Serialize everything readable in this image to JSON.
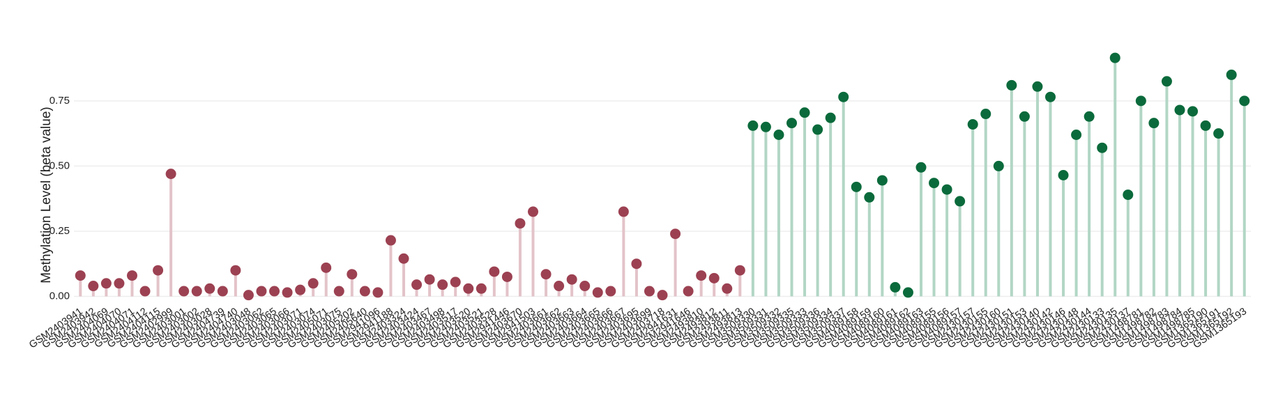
{
  "chart_data": {
    "type": "lollipop",
    "y_label": "Methylation Level (beta value)",
    "categories": [
      "GSM2403941",
      "GSM2403942",
      "GSM2404069",
      "GSM2404070",
      "GSM2404071",
      "GSM2404112",
      "GSM2404115",
      "GSM2402999",
      "GSM2403001",
      "GSM2403002",
      "GSM2403028",
      "GSM2404739",
      "GSM2404740",
      "GSM2403048",
      "GSM2403062",
      "GSM2403065",
      "GSM2403066",
      "GSM2403071",
      "GSM2403074",
      "GSM2405071",
      "GSM2403075",
      "GSM2405202",
      "GSM2405640",
      "GSM2941096",
      "GSM2941188",
      "GSM2403324",
      "GSM2403424",
      "GSM2403467",
      "GSM2403498",
      "GSM2403517",
      "GSM2403520",
      "GSM2403521",
      "GSM2403528",
      "GSM2941446",
      "GSM2403670",
      "GSM2941503",
      "GSM2403661",
      "GSM2403662",
      "GSM2403663",
      "GSM2403664",
      "GSM2403665",
      "GSM2403666",
      "GSM2403667",
      "GSM2403695",
      "GSM2403699",
      "GSM2403718",
      "GSM2941631",
      "GSM2941646",
      "GSM2493810",
      "GSM2493812",
      "GSM2493811",
      "GSM2493813",
      "GSM3509330",
      "GSM3509331",
      "GSM3509332",
      "GSM3509335",
      "GSM3509333",
      "GSM3509336",
      "GSM3509334",
      "GSM3509337",
      "GSM4089158",
      "GSM4089159",
      "GSM4089160",
      "GSM4089161",
      "GSM4089162",
      "GSM4089163",
      "GSM4089155",
      "GSM4089156",
      "GSM4089157",
      "GSM2430157",
      "GSM2430155",
      "GSM2430160",
      "GSM2430151",
      "GSM2430153",
      "GSM2430140",
      "GSM2430142",
      "GSM2430146",
      "GSM2430148",
      "GSM2430144",
      "GSM2430133",
      "GSM2430135",
      "GSM2430137",
      "GSM1498781",
      "GSM1498782",
      "GSM1498783",
      "GSM1498784",
      "GSM1498785",
      "GSM1365190",
      "GSM1365191",
      "GSM1365192",
      "GSM1365193"
    ],
    "series": [
      {
        "color": "#9c4152",
        "stem_color": "#e3c3c9",
        "values": [
          0.08,
          0.04,
          0.05,
          0.05,
          0.08,
          0.02,
          0.1,
          0.47,
          0.02,
          0.02,
          0.03,
          0.02,
          0.1,
          0.005,
          0.02,
          0.02,
          0.015,
          0.025,
          0.05,
          0.11,
          0.02,
          0.085,
          0.02,
          0.015,
          0.215,
          0.145,
          0.045,
          0.065,
          0.045,
          0.055,
          0.03,
          0.03,
          0.095,
          0.075,
          0.28,
          0.325,
          0.085,
          0.04,
          0.065,
          0.04,
          0.015,
          0.02,
          0.325,
          0.125,
          0.02,
          0.005,
          0.24,
          0.02,
          0.08,
          0.07,
          0.03,
          0.1,
          null,
          null,
          null,
          null,
          null,
          null,
          null,
          null,
          null,
          null,
          null,
          null,
          null,
          null,
          null,
          null,
          null,
          null,
          null,
          null,
          null,
          null,
          null,
          null,
          null,
          null,
          null,
          null,
          null,
          null,
          null,
          null,
          null,
          null,
          null,
          null,
          null,
          null,
          null
        ]
      },
      {
        "color": "#0a6a3b",
        "stem_color": "#b2d6c5",
        "values": [
          null,
          null,
          null,
          null,
          null,
          null,
          null,
          null,
          null,
          null,
          null,
          null,
          null,
          null,
          null,
          null,
          null,
          null,
          null,
          null,
          null,
          null,
          null,
          null,
          null,
          null,
          null,
          null,
          null,
          null,
          null,
          null,
          null,
          null,
          null,
          null,
          null,
          null,
          null,
          null,
          null,
          null,
          null,
          null,
          null,
          null,
          null,
          null,
          null,
          null,
          null,
          null,
          0.655,
          0.65,
          0.62,
          0.665,
          0.705,
          0.64,
          0.685,
          0.765,
          0.42,
          0.38,
          0.445,
          0.035,
          0.015,
          0.495,
          0.435,
          0.41,
          0.365,
          0.66,
          0.7,
          0.5,
          0.81,
          0.69,
          0.805,
          0.765,
          0.465,
          0.62,
          0.69,
          0.57,
          0.915,
          0.39,
          0.75,
          0.665,
          0.825,
          0.715,
          0.71,
          0.655,
          0.625,
          0.85,
          0.75
        ]
      }
    ],
    "ylim": [
      -0.02,
      0.95
    ],
    "yticks": [
      {
        "value": 0,
        "label": "0.00"
      },
      {
        "value": 0.25,
        "label": "0.25"
      },
      {
        "value": 0.5,
        "label": "0.50"
      },
      {
        "value": 0.75,
        "label": "0.75"
      }
    ],
    "grid": true
  }
}
